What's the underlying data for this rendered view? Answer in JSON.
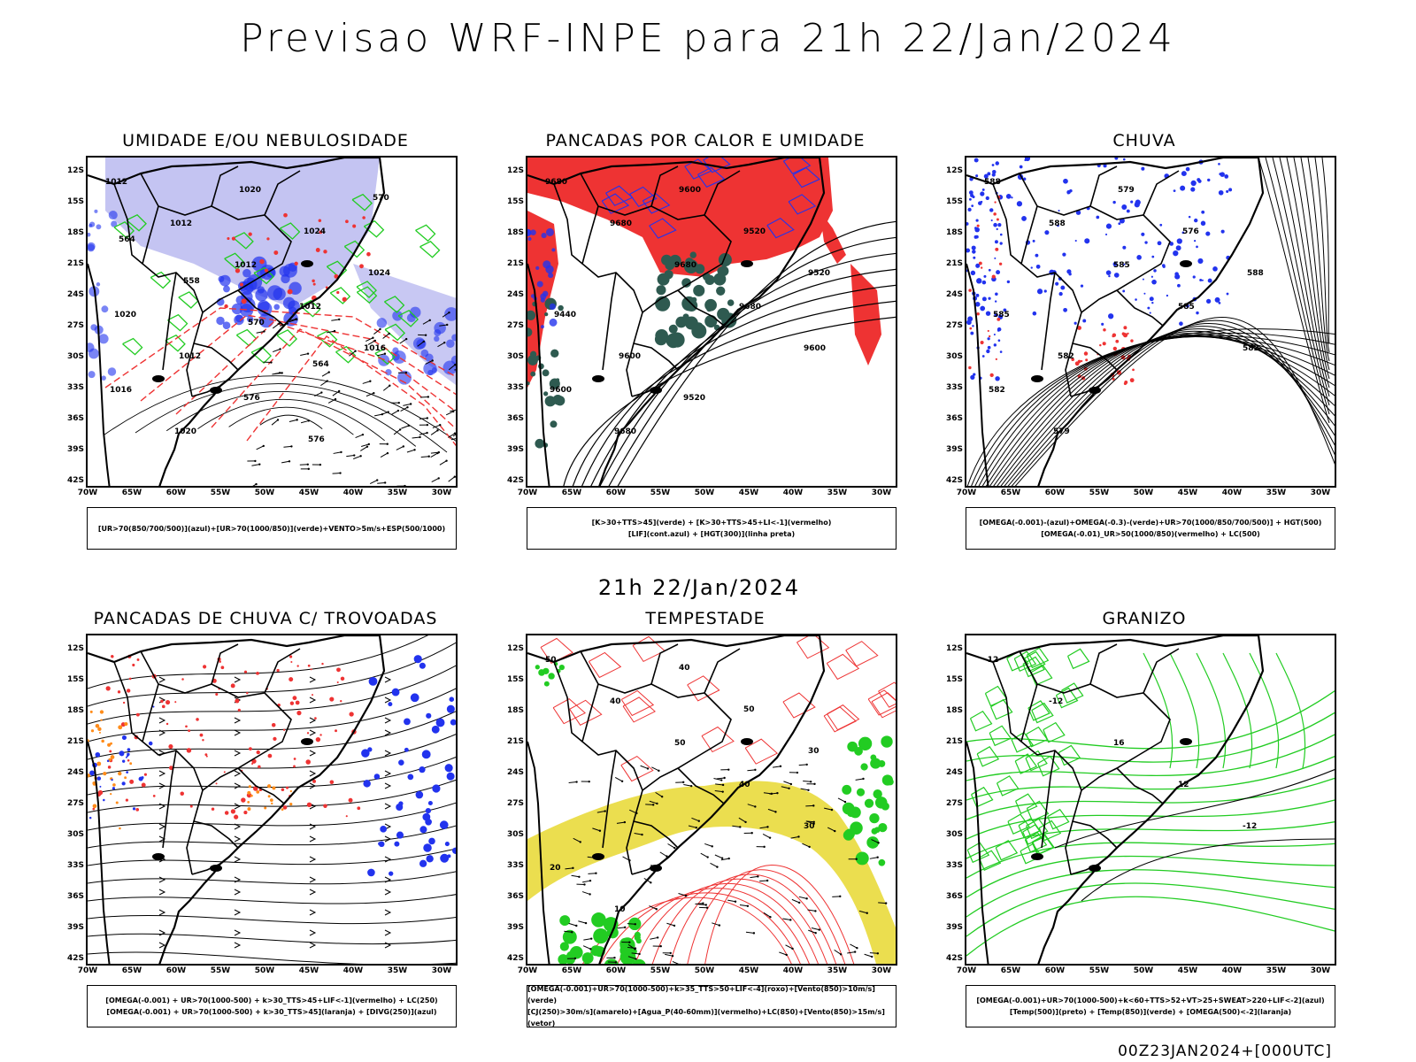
{
  "header": {
    "title": "Previsao WRF-INPE  para 21h 22/Jan/2024"
  },
  "mid_date": "21h 22/Jan/2024",
  "footer": "00Z23JAN2024+[000UTC]",
  "axes": {
    "lat_labels": [
      "12S",
      "15S",
      "18S",
      "21S",
      "24S",
      "27S",
      "30S",
      "33S",
      "36S",
      "39S",
      "42S"
    ],
    "lon_labels": [
      "70W",
      "65W",
      "60W",
      "55W",
      "50W",
      "45W",
      "40W",
      "35W",
      "30W"
    ]
  },
  "colors": {
    "blue": "#2233ee",
    "green": "#22cc22",
    "red": "#ee3333",
    "yellow": "#e8d830",
    "darkgreen": "#2e5a50",
    "lavender": "#b0b0ee",
    "orange": "#ff8c1a"
  },
  "panels": [
    {
      "id": "umidade",
      "title": "UMIDADE E/OU NEBULOSIDADE",
      "legend": [
        "[UR>70(850/700/500)](azul)+[UR>70(1000/850)](verde)+VENTO>5m/s+ESP(500/1000)"
      ],
      "labels": [
        "1012",
        "1012",
        "1012",
        "1012",
        "1016",
        "1016",
        "1020",
        "1020",
        "1024",
        "1024",
        "1020",
        "1012",
        "576",
        "576",
        "570",
        "564",
        "558",
        "570",
        "564"
      ]
    },
    {
      "id": "pancadas-calor",
      "title": "PANCADAS POR CALOR E UMIDADE",
      "legend": [
        "[K>30+TTS>45](verde) + [K>30+TTS>45+LI<-1](vermelho)",
        "[LIF](cont.azul) + [HGT(300)](linha preta)"
      ],
      "labels": [
        "9680",
        "9680",
        "9680",
        "9680",
        "9600",
        "9600",
        "9680",
        "9600",
        "9520",
        "9520",
        "9440",
        "9600",
        "9520"
      ]
    },
    {
      "id": "chuva",
      "title": "CHUVA",
      "legend": [
        "[OMEGA(-0.001)-(azul)+OMEGA(-0.3)-(verde)+UR>70(1000/850/700/500)] + HGT(500)",
        "[OMEGA(-0.01)_UR>50(1000/850)(vermelho) + LC(500)"
      ],
      "labels": [
        "588",
        "588",
        "585",
        "585",
        "582",
        "582",
        "579",
        "579",
        "576",
        "588",
        "585",
        "582"
      ]
    },
    {
      "id": "pancadas-trovoadas",
      "title": "PANCADAS DE CHUVA C/ TROVOADAS",
      "legend": [
        "[OMEGA(-0.001) + UR>70(1000-500) + k>30_TTS>45+LIF<-1](vermelho) + LC(250)",
        "[OMEGA(-0.001) + UR>70(1000-500) + k>30_TTS>45](laranja) + [DIVG(250)](azul)"
      ],
      "labels": []
    },
    {
      "id": "tempestade",
      "title": "TEMPESTADE",
      "legend": [
        "[OMEGA(-0.001)+UR>70(1000-500)+k>35_TTS>50+LIF<-4](roxo)+[Vento(850)>10m/s](verde)",
        "[CJ(250)>30m/s](amarelo)+[Agua_P(40-60mm)](vermelho)+LC(850)+[Vento(850)>15m/s](vetor)"
      ],
      "labels": [
        "50",
        "40",
        "50",
        "40",
        "30",
        "20",
        "10",
        "40",
        "50",
        "30"
      ]
    },
    {
      "id": "granizo",
      "title": "GRANIZO",
      "legend": [
        "[OMEGA(-0.001)+UR>70(1000-500)+k<60+TTS>52+VT>25+SWEAT>220+LIF<-2](azul)",
        "[Temp(500)](preto) + [Temp(850)](verde) + [OMEGA(500)<-2](laranja)"
      ],
      "labels": [
        "-12",
        "-12",
        "16",
        "12",
        "-12"
      ]
    }
  ]
}
